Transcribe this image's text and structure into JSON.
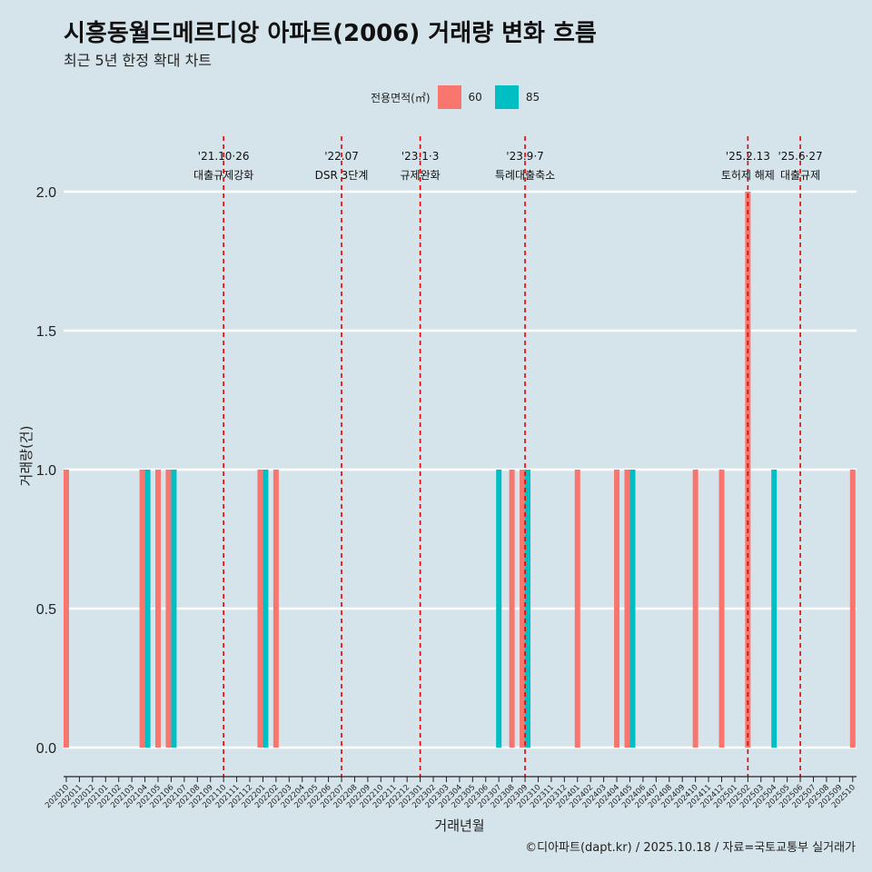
{
  "title": "시흥동월드메르디앙 아파트(2006) 거래량 변화 흐름",
  "subtitle": "최근 5년 한정 확대 차트",
  "caption": "©디아파트(dapt.kr) / 2025.10.18 / 자료=국토교통부 실거래가",
  "colors": {
    "s60": "#f8766d",
    "s85": "#00bfc4",
    "grid": "#ffffff",
    "vline": "#e60000"
  },
  "chart_data": {
    "type": "bar",
    "xlabel": "거래년월",
    "ylabel": "거래량(건)",
    "ylim": [
      0,
      2
    ],
    "yticks": [
      "0.0",
      "0.5",
      "1.0",
      "1.5",
      "2.0"
    ],
    "legend_title": "전용면적(㎡)",
    "legend_position": "top",
    "categories": [
      "202010",
      "202011",
      "202012",
      "202101",
      "202102",
      "202103",
      "202104",
      "202105",
      "202106",
      "202107",
      "202108",
      "202109",
      "202110",
      "202111",
      "202112",
      "202201",
      "202202",
      "202203",
      "202204",
      "202205",
      "202206",
      "202207",
      "202208",
      "202209",
      "202210",
      "202211",
      "202212",
      "202301",
      "202302",
      "202303",
      "202304",
      "202305",
      "202306",
      "202307",
      "202308",
      "202309",
      "202310",
      "202311",
      "202312",
      "202401",
      "202402",
      "202403",
      "202404",
      "202405",
      "202406",
      "202407",
      "202408",
      "202409",
      "202410",
      "202411",
      "202412",
      "202501",
      "202502",
      "202503",
      "202504",
      "202505",
      "202506",
      "202507",
      "202508",
      "202509",
      "202510"
    ],
    "series": [
      {
        "name": "60",
        "values": [
          1,
          0,
          0,
          0,
          0,
          0,
          1,
          1,
          1,
          0,
          0,
          0,
          0,
          0,
          0,
          1,
          1,
          0,
          0,
          0,
          0,
          0,
          0,
          0,
          0,
          0,
          0,
          0,
          0,
          0,
          0,
          0,
          0,
          0,
          1,
          1,
          0,
          0,
          0,
          1,
          0,
          0,
          1,
          1,
          0,
          0,
          0,
          0,
          1,
          0,
          1,
          0,
          2,
          0,
          0,
          0,
          0,
          0,
          0,
          0,
          1
        ]
      },
      {
        "name": "85",
        "values": [
          0,
          0,
          0,
          0,
          0,
          0,
          1,
          0,
          1,
          0,
          0,
          0,
          0,
          0,
          0,
          1,
          0,
          0,
          0,
          0,
          0,
          0,
          0,
          0,
          0,
          0,
          0,
          0,
          0,
          0,
          0,
          0,
          0,
          1,
          0,
          1,
          0,
          0,
          0,
          0,
          0,
          0,
          0,
          1,
          0,
          0,
          0,
          0,
          0,
          0,
          0,
          0,
          0,
          0,
          1,
          0,
          0,
          0,
          0,
          0,
          0
        ]
      }
    ],
    "annotations": [
      {
        "at": 12.0,
        "date": "'21.10·26",
        "label": "대출규제강화",
        "offset": 0
      },
      {
        "at": 21.0,
        "date": "'22.07",
        "label": "DSR 3단계",
        "offset": 0
      },
      {
        "at": 27.0,
        "date": "'23.1·3",
        "label": "규제완화",
        "offset": 0
      },
      {
        "at": 35.0,
        "date": "'23.9·7",
        "label": "특례대출축소",
        "offset": 0
      },
      {
        "at": 52.0,
        "date": "'25.2.13",
        "label": "토허제 해제",
        "offset": -1
      },
      {
        "at": 56.0,
        "date": "'25.6·27",
        "label": "대출규제",
        "offset": 0
      }
    ]
  }
}
